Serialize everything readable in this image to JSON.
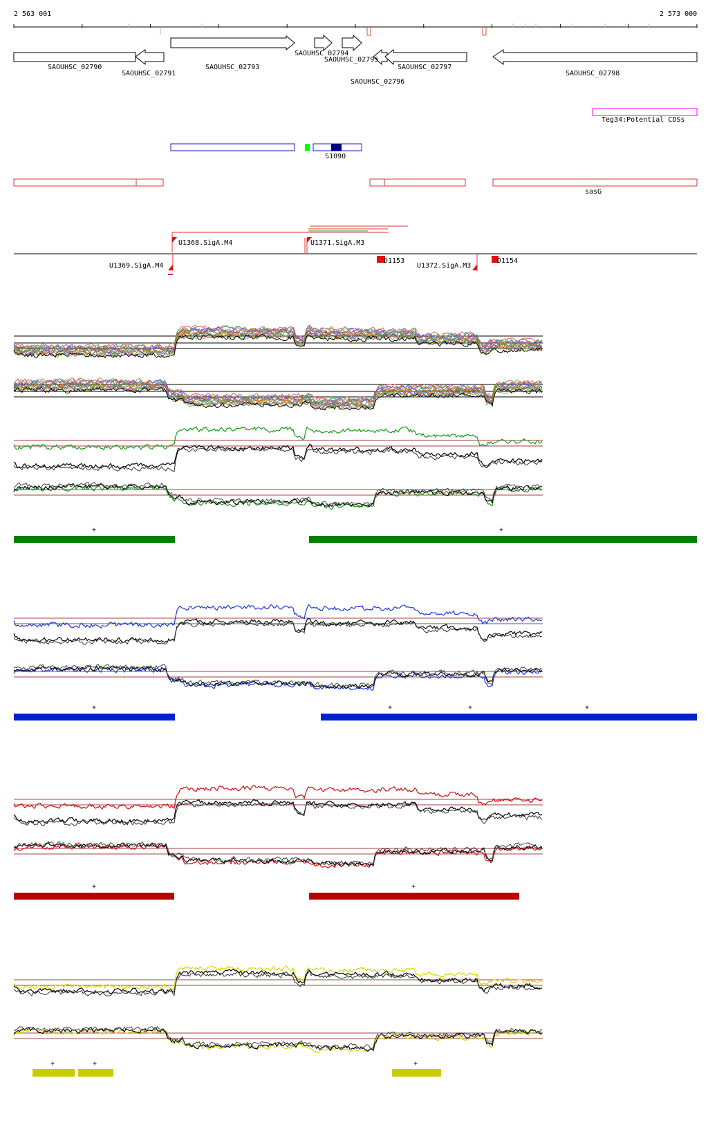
{
  "coordinates": {
    "start_label": "2 563 001",
    "end_label": "2 573 000"
  },
  "genes": [
    {
      "id": "g02790",
      "label": "SAOUHSC_02790",
      "strand": "+"
    },
    {
      "id": "g02791",
      "label": "SAOUHSC_02791",
      "strand": "-"
    },
    {
      "id": "g02793",
      "label": "SAOUHSC_02793",
      "strand": "+"
    },
    {
      "id": "g02794",
      "label": "SAOUHSC_02794",
      "strand": "+"
    },
    {
      "id": "g02795",
      "label": "SAOUHSC_02795",
      "strand": "+"
    },
    {
      "id": "g02796",
      "label": "SAOUHSC_02796",
      "strand": "-"
    },
    {
      "id": "g02797",
      "label": "SAOUHSC_02797",
      "strand": "-"
    },
    {
      "id": "g02798",
      "label": "SAOUHSC_02798",
      "strand": "-"
    }
  ],
  "features": {
    "teg_label": "Teg34:Potential CDSs",
    "srna_label": "S1090",
    "sasG_label": "sasG"
  },
  "transcription_units": {
    "u1368": "U1368.SigA.M4",
    "u1371": "U1371.SigA.M3",
    "u1369": "U1369.SigA.M4",
    "u1372": "U1372.SigA.M3",
    "d1153": "D1153",
    "d1154": "D1154"
  },
  "condition_groups": [
    {
      "name": "green",
      "color": "#008000"
    },
    {
      "name": "blue",
      "color": "#0022cc"
    },
    {
      "name": "red",
      "color": "#bb0000"
    },
    {
      "name": "yellow",
      "color": "#c8cc00"
    }
  ],
  "marks": {
    "plus": "+"
  }
}
